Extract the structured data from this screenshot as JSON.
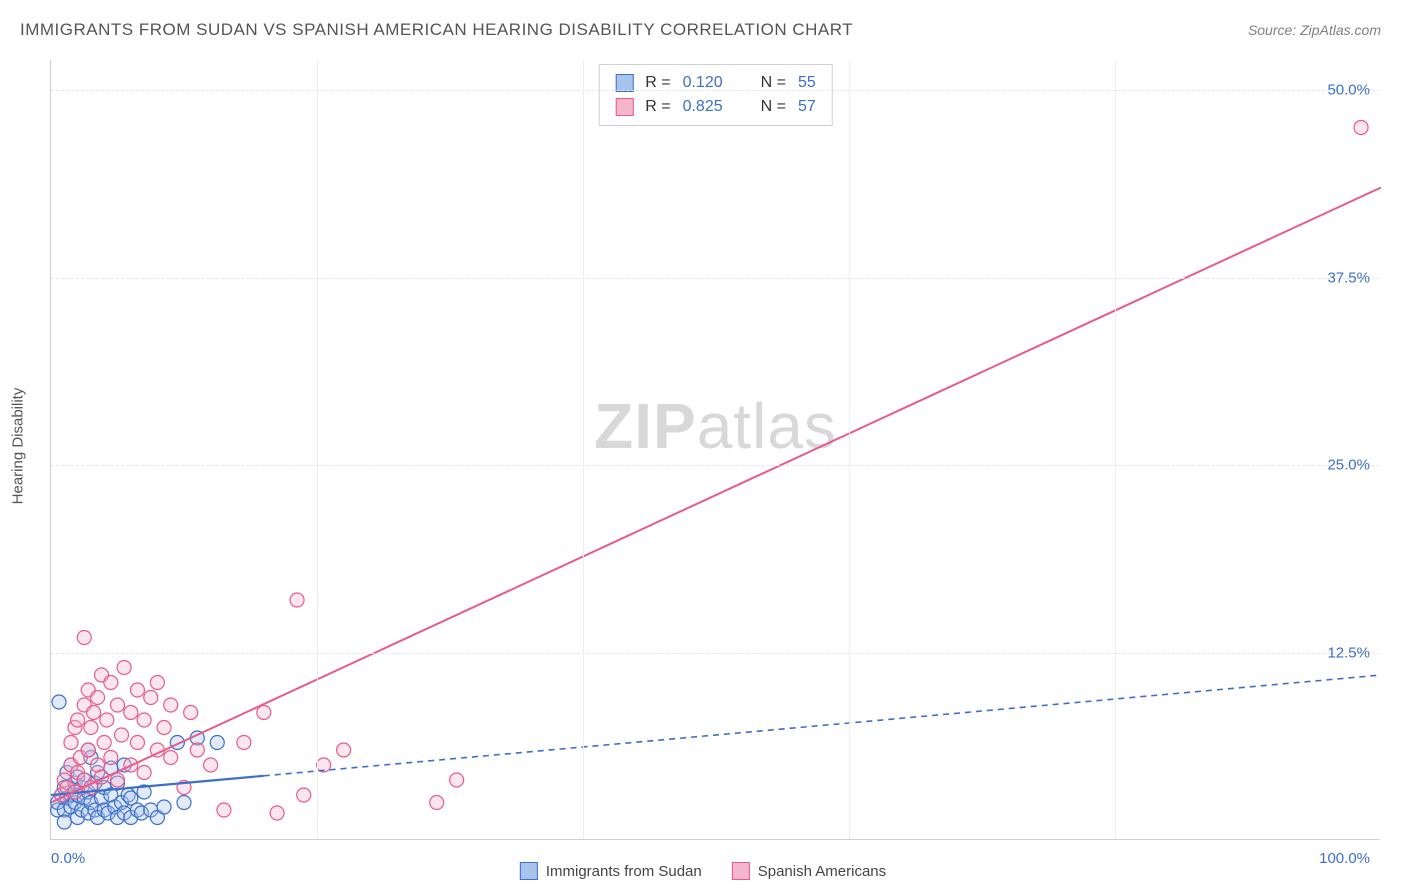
{
  "title": "IMMIGRANTS FROM SUDAN VS SPANISH AMERICAN HEARING DISABILITY CORRELATION CHART",
  "source": "Source: ZipAtlas.com",
  "ylabel": "Hearing Disability",
  "watermark_bold": "ZIP",
  "watermark_rest": "atlas",
  "chart": {
    "type": "scatter",
    "background_color": "#ffffff",
    "grid_color": "#e5e5e5",
    "axis_color": "#d0d0d0",
    "label_color": "#3b6fc9",
    "title_color": "#555555",
    "xlim": [
      0,
      100
    ],
    "ylim": [
      0,
      52
    ],
    "yticks": [
      12.5,
      25.0,
      37.5,
      50.0
    ],
    "ytick_labels": [
      "12.5%",
      "25.0%",
      "37.5%",
      "50.0%"
    ],
    "xticks_major": [
      20,
      40,
      60,
      80
    ],
    "xtick_labels": {
      "left": "0.0%",
      "right": "100.0%"
    },
    "marker_radius": 7,
    "marker_stroke_width": 1.2,
    "marker_fill_opacity": 0.35,
    "series": [
      {
        "name": "Immigrants from Sudan",
        "color_stroke": "#3b6fc9",
        "color_fill": "#a8c4ec",
        "r_value": "0.120",
        "n_value": "55",
        "line_dash": "6,5",
        "line_width": 1.6,
        "solid_segment_x": 16,
        "trend": {
          "x1": 0,
          "y1": 3.0,
          "x2": 100,
          "y2": 11.0
        },
        "points": [
          [
            0.5,
            2.0
          ],
          [
            0.5,
            2.5
          ],
          [
            0.8,
            3.0
          ],
          [
            1.0,
            2.0
          ],
          [
            1.0,
            3.5
          ],
          [
            1.2,
            2.8
          ],
          [
            1.2,
            4.5
          ],
          [
            1.5,
            2.2
          ],
          [
            1.5,
            3.0
          ],
          [
            1.5,
            5.0
          ],
          [
            1.8,
            2.5
          ],
          [
            1.8,
            3.8
          ],
          [
            2.0,
            1.5
          ],
          [
            2.0,
            3.0
          ],
          [
            2.0,
            4.2
          ],
          [
            2.3,
            2.0
          ],
          [
            2.3,
            3.5
          ],
          [
            2.5,
            2.8
          ],
          [
            2.5,
            4.0
          ],
          [
            2.8,
            1.8
          ],
          [
            2.8,
            3.2
          ],
          [
            3.0,
            2.5
          ],
          [
            3.0,
            5.5
          ],
          [
            3.3,
            2.0
          ],
          [
            3.3,
            3.8
          ],
          [
            3.5,
            1.5
          ],
          [
            3.5,
            4.5
          ],
          [
            3.8,
            2.8
          ],
          [
            4.0,
            2.0
          ],
          [
            4.0,
            3.5
          ],
          [
            4.3,
            1.8
          ],
          [
            4.5,
            3.0
          ],
          [
            4.5,
            4.8
          ],
          [
            4.8,
            2.2
          ],
          [
            5.0,
            1.5
          ],
          [
            5.0,
            3.8
          ],
          [
            5.3,
            2.5
          ],
          [
            5.5,
            1.8
          ],
          [
            5.8,
            3.0
          ],
          [
            6.0,
            1.5
          ],
          [
            6.0,
            2.8
          ],
          [
            6.5,
            2.0
          ],
          [
            6.8,
            1.8
          ],
          [
            7.0,
            3.2
          ],
          [
            7.5,
            2.0
          ],
          [
            8.0,
            1.5
          ],
          [
            8.5,
            2.2
          ],
          [
            9.5,
            6.5
          ],
          [
            10.0,
            2.5
          ],
          [
            11.0,
            6.8
          ],
          [
            12.5,
            6.5
          ],
          [
            0.6,
            9.2
          ],
          [
            2.8,
            6.0
          ],
          [
            5.5,
            5.0
          ],
          [
            1.0,
            1.2
          ]
        ]
      },
      {
        "name": "Spanish Americans",
        "color_stroke": "#e85a8a",
        "color_fill": "#f5b6cb",
        "r_value": "0.825",
        "n_value": "57",
        "line_dash": "none",
        "line_width": 2.0,
        "trend": {
          "x1": 0,
          "y1": 2.5,
          "x2": 100,
          "y2": 43.5
        },
        "points": [
          [
            0.8,
            3.0
          ],
          [
            1.0,
            4.0
          ],
          [
            1.2,
            3.5
          ],
          [
            1.5,
            5.0
          ],
          [
            1.5,
            6.5
          ],
          [
            1.8,
            3.2
          ],
          [
            1.8,
            7.5
          ],
          [
            2.0,
            4.5
          ],
          [
            2.0,
            8.0
          ],
          [
            2.2,
            5.5
          ],
          [
            2.5,
            4.0
          ],
          [
            2.5,
            9.0
          ],
          [
            2.5,
            13.5
          ],
          [
            2.8,
            6.0
          ],
          [
            2.8,
            10.0
          ],
          [
            3.0,
            3.5
          ],
          [
            3.0,
            7.5
          ],
          [
            3.2,
            8.5
          ],
          [
            3.5,
            5.0
          ],
          [
            3.5,
            9.5
          ],
          [
            3.8,
            4.2
          ],
          [
            3.8,
            11.0
          ],
          [
            4.0,
            6.5
          ],
          [
            4.2,
            8.0
          ],
          [
            4.5,
            5.5
          ],
          [
            4.5,
            10.5
          ],
          [
            5.0,
            4.0
          ],
          [
            5.0,
            9.0
          ],
          [
            5.3,
            7.0
          ],
          [
            5.5,
            11.5
          ],
          [
            6.0,
            5.0
          ],
          [
            6.0,
            8.5
          ],
          [
            6.5,
            6.5
          ],
          [
            6.5,
            10.0
          ],
          [
            7.0,
            4.5
          ],
          [
            7.0,
            8.0
          ],
          [
            7.5,
            9.5
          ],
          [
            8.0,
            6.0
          ],
          [
            8.0,
            10.5
          ],
          [
            8.5,
            7.5
          ],
          [
            9.0,
            5.5
          ],
          [
            9.0,
            9.0
          ],
          [
            10.0,
            3.5
          ],
          [
            10.5,
            8.5
          ],
          [
            11.0,
            6.0
          ],
          [
            12.0,
            5.0
          ],
          [
            13.0,
            2.0
          ],
          [
            14.5,
            6.5
          ],
          [
            16.0,
            8.5
          ],
          [
            17.0,
            1.8
          ],
          [
            18.5,
            16.0
          ],
          [
            19.0,
            3.0
          ],
          [
            20.5,
            5.0
          ],
          [
            22.0,
            6.0
          ],
          [
            29.0,
            2.5
          ],
          [
            30.5,
            4.0
          ],
          [
            98.5,
            47.5
          ]
        ]
      }
    ]
  },
  "stats_legend": {
    "r_label": "R  =",
    "n_label": "N  ="
  },
  "bottom_legend_labels": [
    "Immigrants from Sudan",
    "Spanish Americans"
  ]
}
